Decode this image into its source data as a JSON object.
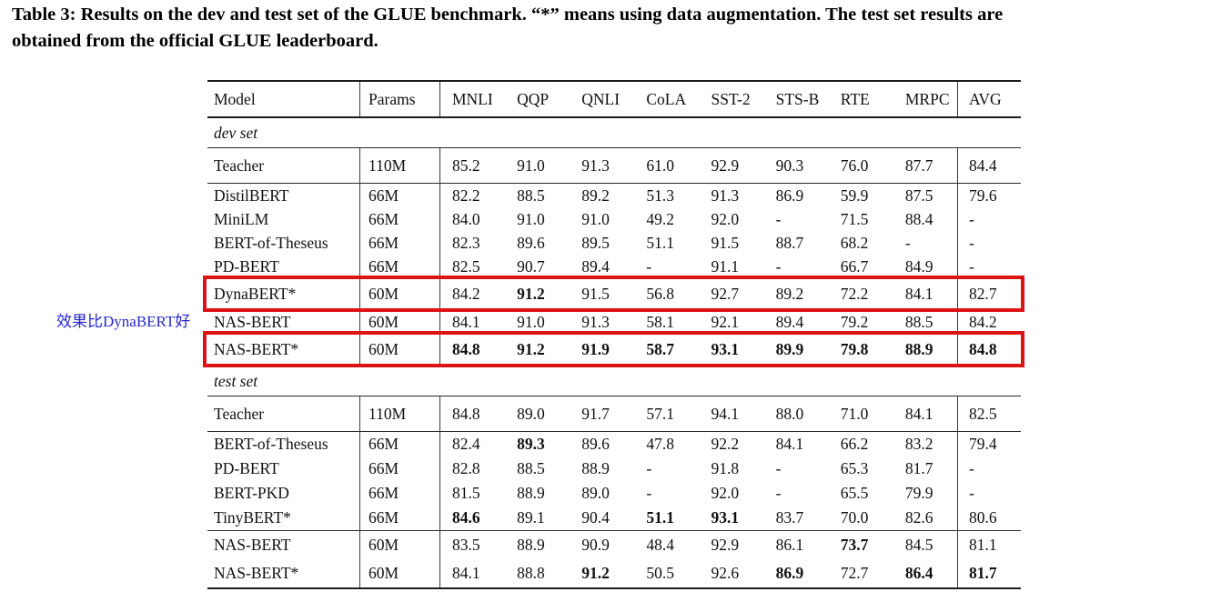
{
  "caption": {
    "line1": "Table 3: Results on the dev and test set of the GLUE benchmark. “*” means using data augmentation. The test set results are",
    "line2": "obtained from the official GLUE leaderboard."
  },
  "annotation": {
    "text": "效果比DynaBERT好",
    "color": "#2727cc"
  },
  "highlight_color": "#dd1212",
  "table": {
    "columns": [
      "Model",
      "Params",
      "MNLI",
      "QQP",
      "QNLI",
      "CoLA",
      "SST-2",
      "STS-B",
      "RTE",
      "MRPC",
      "AVG"
    ],
    "sections": [
      {
        "label": "dev set",
        "groups": [
          {
            "rows": [
              {
                "model": "Teacher",
                "params": "110M",
                "values": [
                  "85.2",
                  "91.0",
                  "91.3",
                  "61.0",
                  "92.9",
                  "90.3",
                  "76.0",
                  "87.7",
                  "84.4"
                ],
                "bold": [],
                "highlighted": false
              }
            ]
          },
          {
            "rows": [
              {
                "model": "DistilBERT",
                "params": "66M",
                "values": [
                  "82.2",
                  "88.5",
                  "89.2",
                  "51.3",
                  "91.3",
                  "86.9",
                  "59.9",
                  "87.5",
                  "79.6"
                ],
                "bold": [],
                "highlighted": false
              },
              {
                "model": "MiniLM",
                "params": "66M",
                "values": [
                  "84.0",
                  "91.0",
                  "91.0",
                  "49.2",
                  "92.0",
                  "-",
                  "71.5",
                  "88.4",
                  "-"
                ],
                "bold": [],
                "highlighted": false
              },
              {
                "model": "BERT-of-Theseus",
                "params": "66M",
                "values": [
                  "82.3",
                  "89.6",
                  "89.5",
                  "51.1",
                  "91.5",
                  "88.7",
                  "68.2",
                  "-",
                  "-"
                ],
                "bold": [],
                "highlighted": false
              },
              {
                "model": "PD-BERT",
                "params": "66M",
                "values": [
                  "82.5",
                  "90.7",
                  "89.4",
                  "-",
                  "91.1",
                  "-",
                  "66.7",
                  "84.9",
                  "-"
                ],
                "bold": [],
                "highlighted": false
              },
              {
                "model": "DynaBERT*",
                "params": "60M",
                "values": [
                  "84.2",
                  "91.2",
                  "91.5",
                  "56.8",
                  "92.7",
                  "89.2",
                  "72.2",
                  "84.1",
                  "82.7"
                ],
                "bold": [
                  1
                ],
                "highlighted": true
              }
            ]
          },
          {
            "rows": [
              {
                "model": "NAS-BERT",
                "params": "60M",
                "values": [
                  "84.1",
                  "91.0",
                  "91.3",
                  "58.1",
                  "92.1",
                  "89.4",
                  "79.2",
                  "88.5",
                  "84.2"
                ],
                "bold": [],
                "highlighted": false
              },
              {
                "model": "NAS-BERT*",
                "params": "60M",
                "values": [
                  "84.8",
                  "91.2",
                  "91.9",
                  "58.7",
                  "93.1",
                  "89.9",
                  "79.8",
                  "88.9",
                  "84.8"
                ],
                "bold": [
                  0,
                  1,
                  2,
                  3,
                  4,
                  5,
                  6,
                  7,
                  8
                ],
                "highlighted": true
              }
            ]
          }
        ]
      },
      {
        "label": "test set",
        "groups": [
          {
            "rows": [
              {
                "model": "Teacher",
                "params": "110M",
                "values": [
                  "84.8",
                  "89.0",
                  "91.7",
                  "57.1",
                  "94.1",
                  "88.0",
                  "71.0",
                  "84.1",
                  "82.5"
                ],
                "bold": [],
                "highlighted": false
              }
            ]
          },
          {
            "rows": [
              {
                "model": "BERT-of-Theseus",
                "params": "66M",
                "values": [
                  "82.4",
                  "89.3",
                  "89.6",
                  "47.8",
                  "92.2",
                  "84.1",
                  "66.2",
                  "83.2",
                  "79.4"
                ],
                "bold": [
                  1
                ],
                "highlighted": false
              },
              {
                "model": "PD-BERT",
                "params": "66M",
                "values": [
                  "82.8",
                  "88.5",
                  "88.9",
                  "-",
                  "91.8",
                  "-",
                  "65.3",
                  "81.7",
                  "-"
                ],
                "bold": [],
                "highlighted": false
              },
              {
                "model": "BERT-PKD",
                "params": "66M",
                "values": [
                  "81.5",
                  "88.9",
                  "89.0",
                  "-",
                  "92.0",
                  "-",
                  "65.5",
                  "79.9",
                  "-"
                ],
                "bold": [],
                "highlighted": false
              },
              {
                "model": "TinyBERT*",
                "params": "66M",
                "values": [
                  "84.6",
                  "89.1",
                  "90.4",
                  "51.1",
                  "93.1",
                  "83.7",
                  "70.0",
                  "82.6",
                  "80.6"
                ],
                "bold": [
                  0,
                  3,
                  4
                ],
                "highlighted": false
              }
            ]
          },
          {
            "rows": [
              {
                "model": "NAS-BERT",
                "params": "60M",
                "values": [
                  "83.5",
                  "88.9",
                  "90.9",
                  "48.4",
                  "92.9",
                  "86.1",
                  "73.7",
                  "84.5",
                  "81.1"
                ],
                "bold": [
                  6
                ],
                "highlighted": false
              },
              {
                "model": "NAS-BERT*",
                "params": "60M",
                "values": [
                  "84.1",
                  "88.8",
                  "91.2",
                  "50.5",
                  "92.6",
                  "86.9",
                  "72.7",
                  "86.4",
                  "81.7"
                ],
                "bold": [
                  2,
                  5,
                  7,
                  8
                ],
                "highlighted": false
              }
            ]
          }
        ]
      }
    ]
  }
}
